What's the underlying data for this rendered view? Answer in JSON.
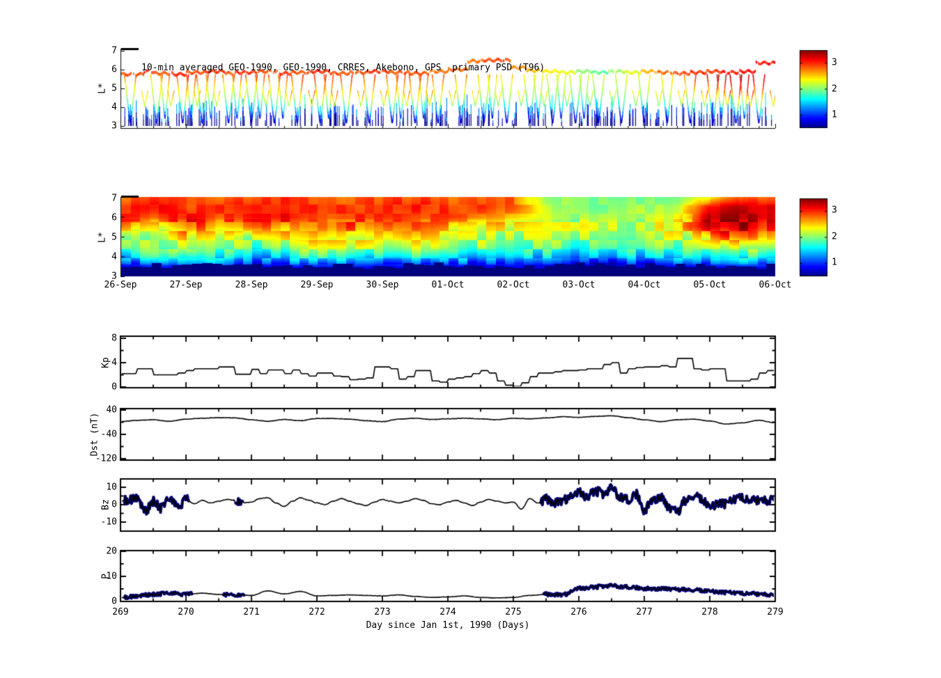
{
  "title": "10-min averaged GEO-1990, GEO-1990, CRRES, Akebono, GPS  primary PSD (T96)",
  "xaxis": {
    "label": "Day since Jan 1st, 1990 (Days)",
    "ticks": [
      "269",
      "270",
      "271",
      "272",
      "273",
      "274",
      "275",
      "276",
      "277",
      "278",
      "279"
    ],
    "range": [
      269,
      279
    ]
  },
  "colorbars": [
    {
      "ticks": [
        "3",
        "2",
        "1"
      ],
      "range": [
        0.5,
        3.5
      ],
      "colormap": "jet"
    },
    {
      "ticks": [
        "3",
        "2",
        "1"
      ],
      "range": [
        0.5,
        3.5
      ],
      "colormap": "jet"
    }
  ],
  "colors": {
    "line": "#000000",
    "highlight": "#000080",
    "background": "#ffffff"
  },
  "chart_data": [
    {
      "id": "psd_scatter",
      "type": "scatter",
      "title": "10-min averaged GEO-1990, GEO-1990, CRRES, Akebono, GPS  primary PSD (T96)",
      "ylabel": "L*",
      "ylim": [
        3,
        7
      ],
      "yticks": [
        "7",
        "6",
        "5",
        "4",
        "3"
      ],
      "x_range_days": [
        0,
        10
      ],
      "band_segments": [
        [
          0.0,
          0.35,
          5.75,
          2.9
        ],
        [
          0.35,
          0.5,
          5.9,
          3.0
        ],
        [
          0.5,
          0.8,
          5.8,
          2.9
        ],
        [
          0.8,
          1.0,
          5.75,
          3.0
        ],
        [
          1.0,
          1.3,
          5.85,
          2.9
        ],
        [
          1.3,
          1.6,
          5.9,
          3.0
        ],
        [
          1.6,
          1.75,
          5.8,
          2.9
        ],
        [
          1.75,
          2.1,
          5.85,
          3.0
        ],
        [
          2.1,
          2.4,
          5.9,
          2.9
        ],
        [
          2.4,
          2.6,
          5.8,
          3.0
        ],
        [
          2.6,
          2.9,
          5.85,
          2.9
        ],
        [
          2.9,
          3.2,
          5.9,
          3.0
        ],
        [
          3.2,
          3.5,
          5.8,
          2.9
        ],
        [
          3.5,
          3.8,
          5.85,
          2.9
        ],
        [
          3.8,
          4.1,
          5.9,
          3.0
        ],
        [
          4.1,
          4.4,
          5.85,
          2.9
        ],
        [
          4.4,
          4.7,
          5.8,
          2.9
        ],
        [
          4.7,
          5.0,
          5.9,
          2.8
        ],
        [
          5.0,
          5.3,
          6.0,
          2.8
        ],
        [
          5.3,
          5.55,
          6.45,
          2.8
        ],
        [
          5.55,
          5.95,
          6.5,
          2.9
        ],
        [
          5.95,
          6.2,
          6.1,
          2.7
        ],
        [
          6.2,
          6.45,
          5.95,
          2.6
        ],
        [
          6.45,
          6.7,
          5.9,
          2.4
        ],
        [
          6.7,
          6.95,
          5.85,
          2.3
        ],
        [
          6.95,
          7.2,
          5.9,
          2.0
        ],
        [
          7.2,
          7.45,
          5.85,
          1.9
        ],
        [
          7.45,
          7.7,
          5.9,
          2.1
        ],
        [
          7.7,
          7.95,
          5.85,
          2.3
        ],
        [
          7.95,
          8.2,
          5.9,
          2.6
        ],
        [
          8.2,
          8.45,
          5.85,
          2.8
        ],
        [
          8.45,
          8.7,
          5.8,
          2.9
        ],
        [
          8.7,
          8.95,
          5.85,
          3.0
        ],
        [
          8.95,
          9.2,
          5.9,
          3.0
        ],
        [
          9.2,
          9.45,
          5.85,
          3.1
        ],
        [
          9.45,
          9.7,
          5.9,
          3.1
        ],
        [
          9.7,
          10.0,
          6.35,
          3.1
        ]
      ],
      "dip_times": [
        0.15,
        0.55,
        0.95,
        1.25,
        1.65,
        2.0,
        2.35,
        2.7,
        3.05,
        3.45,
        3.8,
        4.15,
        4.5,
        4.85,
        5.2,
        5.55,
        5.9,
        6.25,
        6.6,
        6.95,
        7.3,
        7.65,
        8.0,
        8.35,
        8.7,
        9.05,
        9.4,
        9.75
      ],
      "dip_min_L": 3.05,
      "dip_half_width": 0.09,
      "shallow_dip_L": 4.05,
      "spike_count": 240
    },
    {
      "id": "psd_map",
      "type": "heatmap",
      "ylabel": "L*",
      "ylim": [
        3,
        7
      ],
      "yticks": [
        "7",
        "6",
        "5",
        "4",
        "3"
      ],
      "xticklabels": [
        "26-Sep",
        "27-Sep",
        "28-Sep",
        "29-Sep",
        "30-Sep",
        "01-Oct",
        "02-Oct",
        "03-Oct",
        "04-Oct",
        "05-Oct",
        "06-Oct"
      ],
      "t_cols_days": [
        0,
        0.5,
        1,
        1.5,
        2,
        2.5,
        3,
        3.5,
        4,
        4.5,
        5,
        5.5,
        6,
        6.5,
        7,
        7.5,
        8,
        8.5,
        9,
        9.5,
        10
      ],
      "value_grid_L7_to_L3": [
        [
          2.8,
          2.9,
          2.9,
          2.8,
          2.9,
          3.0,
          2.9,
          2.8,
          2.9,
          2.9,
          2.8,
          2.9,
          2.8,
          2.1,
          2.0,
          1.9,
          2.0,
          2.1,
          2.4,
          2.9,
          2.9
        ],
        [
          3.0,
          3.1,
          2.9,
          3.0,
          3.1,
          3.0,
          3.0,
          2.9,
          3.0,
          3.1,
          2.9,
          3.0,
          2.8,
          2.2,
          2.0,
          2.0,
          2.1,
          2.2,
          3.1,
          3.3,
          3.2
        ],
        [
          3.0,
          2.9,
          3.1,
          2.9,
          3.0,
          3.1,
          2.9,
          3.0,
          3.0,
          2.9,
          3.0,
          2.8,
          2.6,
          2.3,
          2.1,
          2.1,
          2.2,
          2.3,
          3.3,
          3.4,
          3.1
        ],
        [
          2.7,
          2.4,
          2.9,
          2.6,
          2.8,
          2.7,
          2.9,
          2.8,
          2.7,
          2.8,
          2.6,
          2.4,
          2.3,
          2.2,
          2.2,
          2.1,
          2.2,
          2.4,
          3.2,
          3.3,
          2.9
        ],
        [
          2.2,
          2.1,
          2.5,
          2.2,
          2.1,
          2.4,
          2.6,
          2.5,
          2.4,
          2.5,
          2.3,
          2.2,
          2.1,
          2.1,
          2.0,
          2.0,
          2.1,
          2.2,
          2.6,
          3.0,
          2.6
        ],
        [
          2.0,
          2.1,
          2.2,
          2.0,
          1.9,
          2.1,
          2.2,
          2.2,
          2.1,
          2.2,
          2.1,
          2.0,
          1.9,
          1.9,
          1.8,
          1.8,
          1.9,
          2.0,
          2.1,
          2.3,
          2.2
        ],
        [
          1.5,
          1.8,
          1.6,
          1.7,
          1.4,
          1.6,
          1.8,
          1.7,
          1.6,
          1.7,
          1.6,
          1.5,
          1.5,
          1.5,
          1.4,
          1.4,
          1.5,
          1.6,
          1.6,
          1.8,
          1.7
        ],
        [
          0.8,
          1.0,
          0.9,
          1.1,
          0.8,
          0.9,
          1.0,
          1.0,
          0.9,
          1.0,
          0.9,
          0.8,
          0.9,
          0.8,
          0.8,
          0.7,
          0.8,
          0.9,
          0.9,
          1.0,
          1.0
        ],
        [
          0.35,
          0.4,
          0.4,
          0.45,
          0.35,
          0.4,
          0.4,
          0.4,
          0.4,
          0.4,
          0.4,
          0.35,
          0.4,
          0.35,
          0.35,
          0.3,
          0.35,
          0.4,
          0.4,
          0.45,
          0.4
        ]
      ]
    },
    {
      "id": "kp",
      "type": "line",
      "ylabel": "Kp",
      "ylim": [
        0,
        8.4
      ],
      "yticks": [
        8,
        4,
        0
      ],
      "yticks_minor": [
        6,
        2
      ],
      "x_start": 269,
      "x_step": 0.125,
      "values": [
        2.2,
        2.2,
        3,
        3,
        2,
        2,
        2,
        2.3,
        2.7,
        3,
        3,
        3,
        3.3,
        3.3,
        2.1,
        2.1,
        2.9,
        2.2,
        2.8,
        2.8,
        2.2,
        2.8,
        2.2,
        1.8,
        2.3,
        2.3,
        1.8,
        1.7,
        1.2,
        1.3,
        1.5,
        3.3,
        3.3,
        3,
        1.3,
        1.7,
        2.7,
        2.7,
        1,
        0.8,
        1.3,
        1.5,
        1.7,
        2.2,
        2.7,
        2.3,
        1,
        0.3,
        0.1,
        0.7,
        1.7,
        2.3,
        2.3,
        2.5,
        2.7,
        2.7,
        2.8,
        3,
        3,
        3.7,
        4,
        2.3,
        3,
        3.2,
        3.3,
        3.3,
        3.5,
        3.3,
        4.7,
        4.7,
        3,
        2.8,
        3,
        3,
        1,
        1,
        1,
        1.3,
        2.3,
        2.7,
        2.5
      ]
    },
    {
      "id": "dst",
      "type": "line",
      "ylabel": "Dst (nT)",
      "ylim": [
        -128,
        44
      ],
      "yticks": [
        40,
        -40,
        -120
      ],
      "yticks_minor": [
        0,
        -80
      ],
      "x_start": 269,
      "x_step": 0.25,
      "values": [
        2,
        6,
        8,
        3,
        10,
        13,
        15,
        14,
        8,
        3,
        9,
        5,
        12,
        12,
        10,
        5,
        2,
        10,
        13,
        9,
        11,
        13,
        11,
        8,
        13,
        11,
        14,
        18,
        16,
        19,
        21,
        15,
        8,
        2,
        8,
        10,
        4,
        -6,
        -2,
        6,
        -2
      ]
    },
    {
      "id": "bz",
      "type": "line",
      "ylabel": "Bz",
      "ylim": [
        -15,
        15
      ],
      "yticks": [
        10,
        0,
        -10
      ],
      "yticks_minor": [
        5,
        -5
      ],
      "x_start": 269,
      "x_step": 0.125,
      "values": [
        2,
        3,
        4.5,
        -4,
        2,
        -2,
        4,
        -1.5,
        3,
        0.5,
        2.5,
        1,
        2,
        3,
        2.5,
        1,
        1.5,
        3.5,
        4,
        1,
        -1,
        2,
        4,
        2.5,
        1,
        0,
        2,
        3.5,
        2,
        0.5,
        -0.5,
        1.5,
        3,
        2,
        1,
        2,
        3.5,
        2.5,
        0.5,
        0,
        1.5,
        2.5,
        1,
        -0.5,
        1.5,
        3,
        2,
        1,
        1.5,
        -2.5,
        3.5,
        1,
        3,
        1,
        2,
        5,
        7,
        5,
        8,
        6,
        9,
        5,
        3,
        6,
        -3,
        3,
        4,
        -2,
        -4,
        2,
        5,
        3,
        -2,
        1,
        0.5,
        3,
        4,
        2,
        3,
        2.5,
        4
      ],
      "highlight_intervals": [
        [
          269.05,
          270.05
        ],
        [
          270.75,
          270.88
        ],
        [
          275.4,
          279
        ]
      ],
      "highlight_color": "#000080"
    },
    {
      "id": "p",
      "type": "line",
      "ylabel": "P",
      "ylim": [
        0,
        20.3
      ],
      "yticks": [
        20,
        10,
        0
      ],
      "yticks_minor": [
        15,
        5
      ],
      "x_start": 269,
      "x_step": 0.25,
      "values": [
        1.5,
        2.2,
        2.8,
        3.3,
        2.8,
        3.3,
        2.8,
        2.6,
        2.4,
        4.2,
        3.0,
        4.0,
        2.2,
        2.4,
        2.6,
        2.4,
        2.2,
        2.6,
        2.0,
        1.6,
        1.8,
        2.2,
        1.6,
        1.4,
        1.6,
        2.4,
        2.8,
        2.6,
        5.2,
        5.8,
        6.2,
        5.8,
        5.2,
        5.0,
        4.8,
        4.5,
        4.0,
        3.6,
        3.2,
        3.0,
        2.6
      ],
      "highlight_intervals": [
        [
          269.05,
          270.1
        ],
        [
          270.55,
          270.9
        ],
        [
          275.45,
          279
        ]
      ],
      "highlight_color": "#000080"
    }
  ]
}
